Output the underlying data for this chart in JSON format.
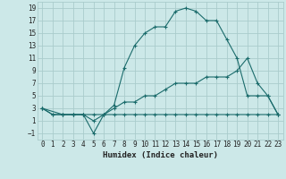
{
  "xlabel": "Humidex (Indice chaleur)",
  "bg_color": "#cce8e8",
  "grid_color": "#aacccc",
  "line_color": "#1a6b6b",
  "xlim": [
    -0.5,
    23.5
  ],
  "ylim": [
    -2,
    20
  ],
  "xticks": [
    0,
    1,
    2,
    3,
    4,
    5,
    6,
    7,
    8,
    9,
    10,
    11,
    12,
    13,
    14,
    15,
    16,
    17,
    18,
    19,
    20,
    21,
    22,
    23
  ],
  "yticks": [
    -1,
    1,
    3,
    5,
    7,
    9,
    11,
    13,
    15,
    17,
    19
  ],
  "series": [
    {
      "x": [
        0,
        1,
        2,
        3,
        4,
        5,
        6,
        7,
        8,
        9,
        10,
        11,
        12,
        13,
        14,
        15,
        16,
        17,
        18,
        19,
        20,
        21,
        22,
        23
      ],
      "y": [
        3,
        2,
        2,
        2,
        2,
        1,
        2,
        2,
        2,
        2,
        2,
        2,
        2,
        2,
        2,
        2,
        2,
        2,
        2,
        2,
        2,
        2,
        2,
        2
      ]
    },
    {
      "x": [
        0,
        1,
        2,
        3,
        4,
        5,
        6,
        7,
        8,
        9,
        10,
        11,
        12,
        13,
        14,
        15,
        16,
        17,
        18,
        19,
        20,
        21,
        22,
        23
      ],
      "y": [
        3,
        2,
        2,
        2,
        2,
        2,
        2,
        3,
        4,
        4,
        5,
        5,
        6,
        7,
        7,
        7,
        8,
        8,
        8,
        9,
        11,
        7,
        5,
        2
      ]
    },
    {
      "x": [
        0,
        2,
        3,
        4,
        5,
        6,
        7,
        8,
        9,
        10,
        11,
        12,
        13,
        14,
        15,
        16,
        17,
        18,
        19,
        20,
        21,
        22,
        23
      ],
      "y": [
        3,
        2,
        2,
        2,
        -1,
        2,
        3.5,
        9.5,
        13,
        15,
        16,
        16,
        18.5,
        19,
        18.5,
        17,
        17,
        14,
        11,
        5,
        5,
        5,
        2
      ]
    }
  ]
}
